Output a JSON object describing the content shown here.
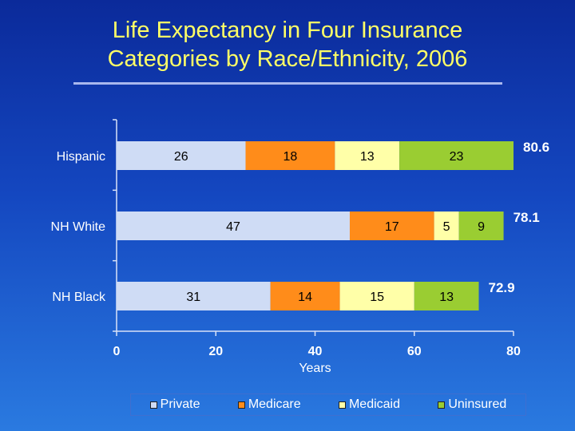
{
  "slide": {
    "title_line1": "Life Expectancy in Four Insurance",
    "title_line2": "Categories by Race/Ethnicity, 2006"
  },
  "chart_data": {
    "type": "bar",
    "orientation": "horizontal",
    "stacked": true,
    "categories": [
      "Hispanic",
      "NH White",
      "NH Black"
    ],
    "series": [
      {
        "name": "Private",
        "color": "#cfdcf5",
        "values": [
          26,
          47,
          31
        ]
      },
      {
        "name": "Medicare",
        "color": "#ff8c1a",
        "values": [
          18,
          17,
          14
        ]
      },
      {
        "name": "Medicaid",
        "color": "#ffffa8",
        "values": [
          13,
          5,
          15
        ]
      },
      {
        "name": "Uninsured",
        "color": "#9acd32",
        "values": [
          23,
          9,
          13
        ]
      }
    ],
    "totals": [
      "80.6",
      "78.1",
      "72.9"
    ],
    "xlabel": "Years",
    "xlim": [
      0,
      80
    ],
    "xticks": [
      0,
      20,
      40,
      60,
      80
    ],
    "grid": false,
    "legend_position": "bottom"
  }
}
